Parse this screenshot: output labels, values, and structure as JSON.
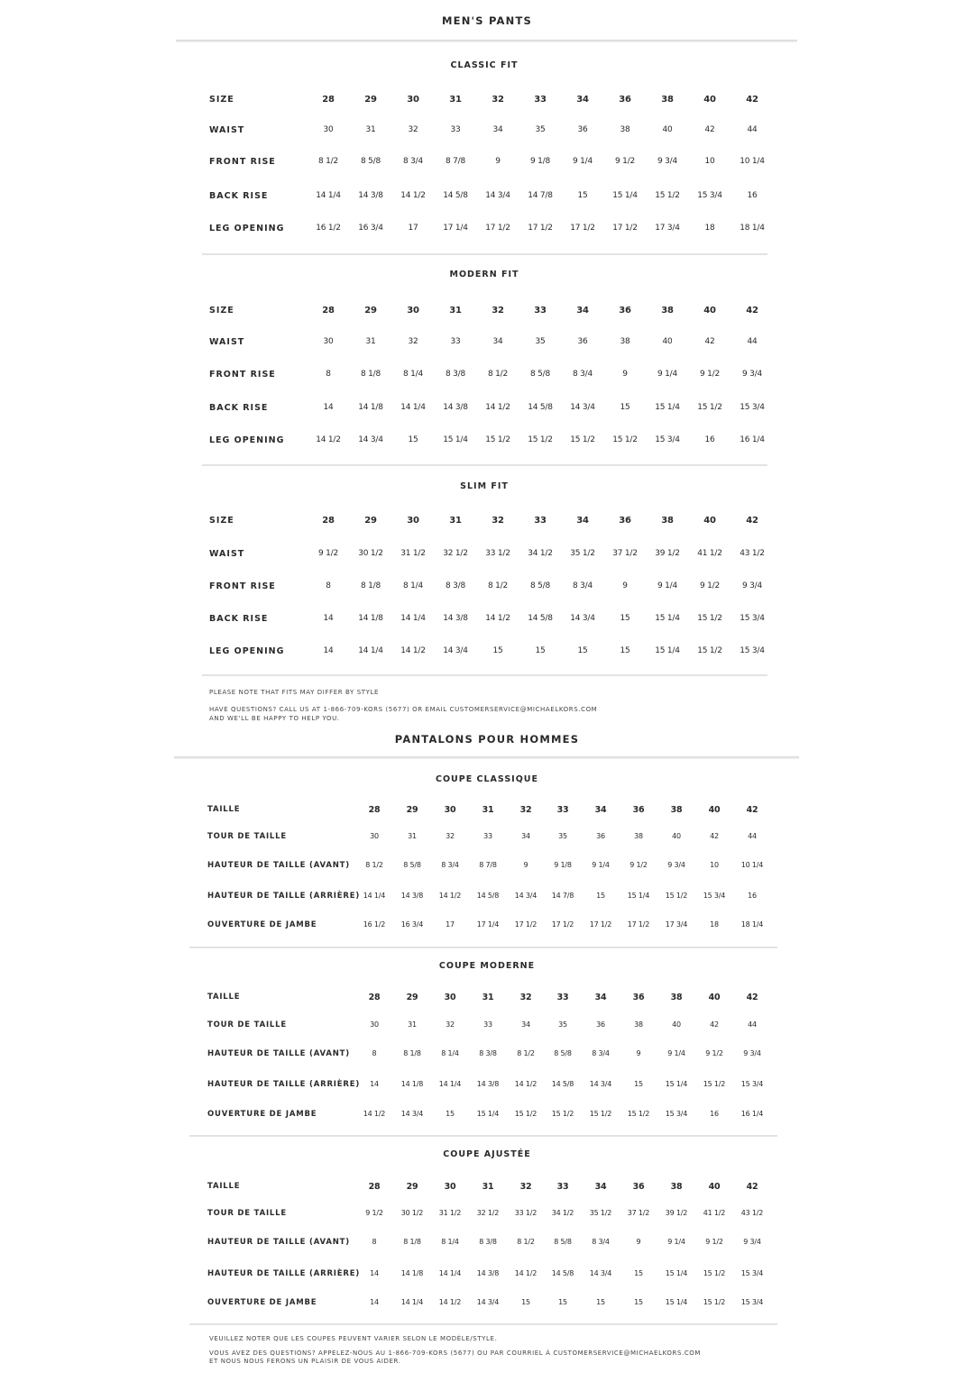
{
  "english": {
    "title": "MEN'S PANTS",
    "sections": [
      {
        "title": "CLASSIC FIT",
        "rows": [
          {
            "label": "SIZE",
            "values": [
              "28",
              "29",
              "30",
              "31",
              "32",
              "33",
              "34",
              "36",
              "38",
              "40",
              "42"
            ]
          },
          {
            "label": "WAIST",
            "values": [
              "30",
              "31",
              "32",
              "33",
              "34",
              "35",
              "36",
              "38",
              "40",
              "42",
              "44"
            ]
          },
          {
            "label": "FRONT RISE",
            "values": [
              "8 1/2",
              "8 5/8",
              "8 3/4",
              "8 7/8",
              "9",
              "9 1/8",
              "9 1/4",
              "9 1/2",
              "9 3/4",
              "10",
              "10 1/4"
            ]
          },
          {
            "label": "BACK RISE",
            "values": [
              "14 1/4",
              "14 3/8",
              "14 1/2",
              "14 5/8",
              "14 3/4",
              "14 7/8",
              "15",
              "15 1/4",
              "15 1/2",
              "15 3/4",
              "16"
            ]
          },
          {
            "label": "LEG OPENING",
            "values": [
              "16 1/2",
              "16 3/4",
              "17",
              "17 1/4",
              "17 1/2",
              "17 1/2",
              "17 1/2",
              "17 1/2",
              "17 3/4",
              "18",
              "18 1/4"
            ]
          }
        ]
      },
      {
        "title": "MODERN FIT",
        "rows": [
          {
            "label": "SIZE",
            "values": [
              "28",
              "29",
              "30",
              "31",
              "32",
              "33",
              "34",
              "36",
              "38",
              "40",
              "42"
            ]
          },
          {
            "label": "WAIST",
            "values": [
              "30",
              "31",
              "32",
              "33",
              "34",
              "35",
              "36",
              "38",
              "40",
              "42",
              "44"
            ]
          },
          {
            "label": "FRONT RISE",
            "values": [
              "8",
              "8 1/8",
              "8 1/4",
              "8 3/8",
              "8 1/2",
              "8 5/8",
              "8 3/4",
              "9",
              "9 1/4",
              "9 1/2",
              "9 3/4"
            ]
          },
          {
            "label": "BACK RISE",
            "values": [
              "14",
              "14 1/8",
              "14 1/4",
              "14 3/8",
              "14 1/2",
              "14 5/8",
              "14 3/4",
              "15",
              "15 1/4",
              "15 1/2",
              "15 3/4"
            ]
          },
          {
            "label": "LEG OPENING",
            "values": [
              "14 1/2",
              "14 3/4",
              "15",
              "15 1/4",
              "15 1/2",
              "15 1/2",
              "15 1/2",
              "15 1/2",
              "15 3/4",
              "16",
              "16 1/4"
            ]
          }
        ]
      },
      {
        "title": "SLIM FIT",
        "rows": [
          {
            "label": "SIZE",
            "values": [
              "28",
              "29",
              "30",
              "31",
              "32",
              "33",
              "34",
              "36",
              "38",
              "40",
              "42"
            ]
          },
          {
            "label": "WAIST",
            "values": [
              "9 1/2",
              "30 1/2",
              "31 1/2",
              "32 1/2",
              "33 1/2",
              "34 1/2",
              "35 1/2",
              "37 1/2",
              "39 1/2",
              "41 1/2",
              "43 1/2"
            ]
          },
          {
            "label": "FRONT RISE",
            "values": [
              "8",
              "8 1/8",
              "8 1/4",
              "8 3/8",
              "8 1/2",
              "8 5/8",
              "8 3/4",
              "9",
              "9 1/4",
              "9 1/2",
              "9 3/4"
            ]
          },
          {
            "label": "BACK RISE",
            "values": [
              "14",
              "14 1/8",
              "14 1/4",
              "14 3/8",
              "14 1/2",
              "14 5/8",
              "14 3/4",
              "15",
              "15 1/4",
              "15 1/2",
              "15 3/4"
            ]
          },
          {
            "label": "LEG OPENING",
            "values": [
              "14",
              "14 1/4",
              "14 1/2",
              "14 3/4",
              "15",
              "15",
              "15",
              "15",
              "15 1/4",
              "15 1/2",
              "15 3/4"
            ]
          }
        ]
      }
    ],
    "notes": [
      "PLEASE NOTE THAT FITS MAY DIFFER BY STYLE",
      "HAVE QUESTIONS? CALL US AT 1-866-709-KORS (5677) OR EMAIL CUSTOMERSERVICE@MICHAELKORS.COM",
      "AND WE'LL BE HAPPY TO HELP YOU."
    ]
  },
  "french": {
    "title": "PANTALONS POUR HOMMES",
    "sections": [
      {
        "title": "COUPE CLASSIQUE",
        "rows": [
          {
            "label": "TAILLE",
            "values": [
              "28",
              "29",
              "30",
              "31",
              "32",
              "33",
              "34",
              "36",
              "38",
              "40",
              "42"
            ]
          },
          {
            "label": "TOUR DE TAILLE",
            "values": [
              "30",
              "31",
              "32",
              "33",
              "34",
              "35",
              "36",
              "38",
              "40",
              "42",
              "44"
            ]
          },
          {
            "label": "HAUTEUR DE TAILLE (AVANT)",
            "values": [
              "8 1/2",
              "8 5/8",
              "8 3/4",
              "8 7/8",
              "9",
              "9 1/8",
              "9 1/4",
              "9 1/2",
              "9 3/4",
              "10",
              "10 1/4"
            ]
          },
          {
            "label": "HAUTEUR DE TAILLE (ARRIÈRE)",
            "values": [
              "14 1/4",
              "14 3/8",
              "14 1/2",
              "14 5/8",
              "14 3/4",
              "14 7/8",
              "15",
              "15 1/4",
              "15 1/2",
              "15 3/4",
              "16"
            ]
          },
          {
            "label": "OUVERTURE DE JAMBE",
            "values": [
              "16 1/2",
              "16 3/4",
              "17",
              "17 1/4",
              "17 1/2",
              "17 1/2",
              "17 1/2",
              "17 1/2",
              "17 3/4",
              "18",
              "18 1/4"
            ]
          }
        ]
      },
      {
        "title": "COUPE MODERNE",
        "rows": [
          {
            "label": "TAILLE",
            "values": [
              "28",
              "29",
              "30",
              "31",
              "32",
              "33",
              "34",
              "36",
              "38",
              "40",
              "42"
            ]
          },
          {
            "label": "TOUR DE TAILLE",
            "values": [
              "30",
              "31",
              "32",
              "33",
              "34",
              "35",
              "36",
              "38",
              "40",
              "42",
              "44"
            ]
          },
          {
            "label": "HAUTEUR DE TAILLE (AVANT)",
            "values": [
              "8",
              "8 1/8",
              "8 1/4",
              "8 3/8",
              "8 1/2",
              "8 5/8",
              "8 3/4",
              "9",
              "9 1/4",
              "9 1/2",
              "9 3/4"
            ]
          },
          {
            "label": "HAUTEUR DE TAILLE (ARRIÈRE)",
            "values": [
              "14",
              "14 1/8",
              "14 1/4",
              "14 3/8",
              "14 1/2",
              "14 5/8",
              "14 3/4",
              "15",
              "15 1/4",
              "15 1/2",
              "15 3/4"
            ]
          },
          {
            "label": "OUVERTURE DE JAMBE",
            "values": [
              "14 1/2",
              "14 3/4",
              "15",
              "15 1/4",
              "15 1/2",
              "15 1/2",
              "15 1/2",
              "15 1/2",
              "15 3/4",
              "16",
              "16 1/4"
            ]
          }
        ]
      },
      {
        "title": "COUPE AJUSTÉE",
        "rows": [
          {
            "label": "TAILLE",
            "values": [
              "28",
              "29",
              "30",
              "31",
              "32",
              "33",
              "34",
              "36",
              "38",
              "40",
              "42"
            ]
          },
          {
            "label": "TOUR DE TAILLE",
            "values": [
              "9 1/2",
              "30 1/2",
              "31 1/2",
              "32 1/2",
              "33 1/2",
              "34 1/2",
              "35 1/2",
              "37 1/2",
              "39 1/2",
              "41 1/2",
              "43 1/2"
            ]
          },
          {
            "label": "HAUTEUR DE TAILLE (AVANT)",
            "values": [
              "8",
              "8 1/8",
              "8 1/4",
              "8 3/8",
              "8 1/2",
              "8 5/8",
              "8 3/4",
              "9",
              "9 1/4",
              "9 1/2",
              "9 3/4"
            ]
          },
          {
            "label": "HAUTEUR DE TAILLE (ARRIÈRE)",
            "values": [
              "14",
              "14 1/8",
              "14 1/4",
              "14 3/8",
              "14 1/2",
              "14 5/8",
              "14 3/4",
              "15",
              "15 1/4",
              "15 1/2",
              "15 3/4"
            ]
          },
          {
            "label": "OUVERTURE DE JAMBE",
            "values": [
              "14",
              "14 1/4",
              "14 1/2",
              "14 3/4",
              "15",
              "15",
              "15",
              "15",
              "15 1/4",
              "15 1/2",
              "15 3/4"
            ]
          }
        ]
      }
    ],
    "notes": [
      "VEUILLEZ NOTER QUE LES COUPES PEUVENT VARIER SELON LE MODÈLE/STYLE.",
      "VOUS AVEZ DES QUESTIONS? APPELEZ-NOUS AU 1-866-709-KORS (5677) OU PAR COURRIEL À CUSTOMERSERVICE@MICHAELKORS.COM",
      "ET NOUS NOUS FERONS UN PLAISIR DE VOUS AIDER."
    ]
  }
}
